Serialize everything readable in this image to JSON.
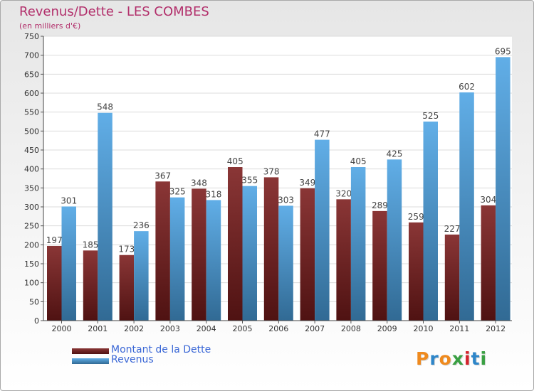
{
  "chart_data": {
    "type": "bar",
    "title": "Revenus/Dette - LES COMBES",
    "subtitle": "(en milliers d'€)",
    "categories": [
      "2000",
      "2001",
      "2002",
      "2003",
      "2004",
      "2005",
      "2006",
      "2007",
      "2008",
      "2009",
      "2010",
      "2011",
      "2012"
    ],
    "series": [
      {
        "name": "Montant de la Dette",
        "color": "#7a1b1b",
        "values": [
          197,
          185,
          173,
          367,
          348,
          405,
          378,
          349,
          320,
          289,
          259,
          227,
          304
        ]
      },
      {
        "name": "Revenus",
        "color": "#4ca3e4",
        "values": [
          301,
          548,
          236,
          325,
          318,
          355,
          303,
          477,
          405,
          425,
          525,
          602,
          695
        ]
      }
    ],
    "ylim": [
      0,
      750
    ],
    "yticks": [
      0,
      50,
      100,
      150,
      200,
      250,
      300,
      350,
      400,
      450,
      500,
      550,
      600,
      650,
      700,
      750
    ],
    "grid": true,
    "legend_position": "bottom-left"
  },
  "logo": {
    "text": "Proxiti",
    "letter_colors": [
      "#ef8a1e",
      "#2e86c9",
      "#ef8a1e",
      "#3aa043",
      "#d4232d",
      "#2e86c9",
      "#3aa043"
    ]
  }
}
